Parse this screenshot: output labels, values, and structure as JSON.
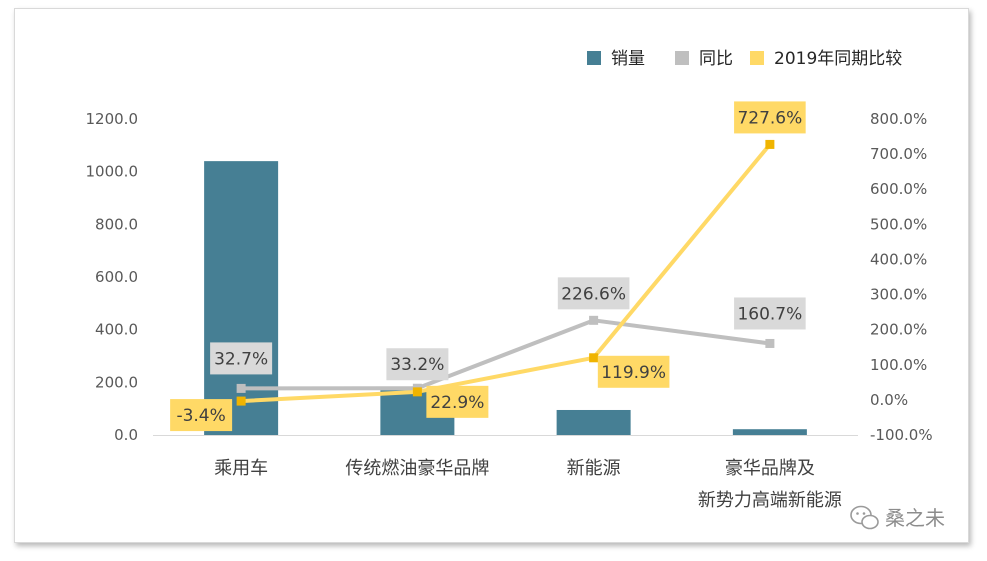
{
  "chart_data": {
    "type": "bar",
    "categories": [
      "乘用车",
      "传统燃油豪华品牌",
      "新能源",
      [
        "豪华品牌及",
        "新势力高端新能源"
      ]
    ],
    "series": [
      {
        "name": "销量",
        "type": "bar",
        "axis": "left",
        "values": [
          1040,
          170,
          95,
          22
        ],
        "color": "#467f94"
      },
      {
        "name": "同比",
        "type": "line",
        "axis": "right",
        "values": [
          32.7,
          33.2,
          226.6,
          160.7
        ],
        "labels": [
          "32.7%",
          "33.2%",
          "226.6%",
          "160.7%"
        ],
        "color": "#bfbfbf"
      },
      {
        "name": "2019年同期比较",
        "type": "line",
        "axis": "right",
        "values": [
          -3.4,
          22.9,
          119.9,
          727.6
        ],
        "labels": [
          "-3.4%",
          "22.9%",
          "119.9%",
          "727.6%"
        ],
        "color": "#ffd966"
      }
    ],
    "y_left": {
      "range": [
        0,
        1200
      ],
      "ticks": [
        "0.0",
        "200.0",
        "400.0",
        "600.0",
        "800.0",
        "1000.0",
        "1200.0"
      ]
    },
    "y_right": {
      "range": [
        -100,
        800
      ],
      "ticks": [
        "-100.0%",
        "0.0%",
        "100.0%",
        "200.0%",
        "300.0%",
        "400.0%",
        "500.0%",
        "600.0%",
        "700.0%",
        "800.0%"
      ]
    },
    "legend_position": "top-right",
    "grid": false,
    "colors": {
      "marker_gold": "#f0b400",
      "marker_grey": "#bfbfbf"
    }
  },
  "watermark": {
    "text": "桑之未",
    "icon": "wechat-icon"
  }
}
